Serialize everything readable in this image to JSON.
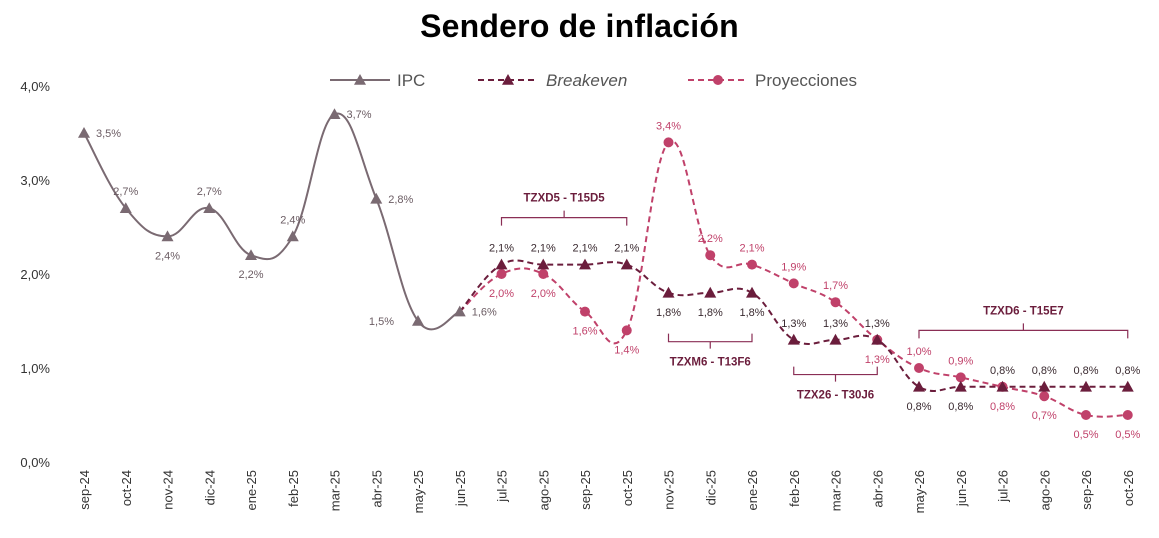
{
  "chart_data": {
    "type": "line",
    "title": "Sendero de inflación",
    "categories": [
      "sep-24",
      "oct-24",
      "nov-24",
      "dic-24",
      "ene-25",
      "feb-25",
      "mar-25",
      "abr-25",
      "may-25",
      "jun-25",
      "jul-25",
      "ago-25",
      "sep-25",
      "oct-25",
      "nov-25",
      "dic-25",
      "ene-26",
      "feb-26",
      "mar-26",
      "abr-26",
      "may-26",
      "jun-26",
      "jul-26",
      "ago-26",
      "sep-26",
      "oct-26"
    ],
    "ylim": [
      0,
      4
    ],
    "yticks": [
      0,
      1,
      2,
      3,
      4
    ],
    "ytick_labels": [
      "0,0%",
      "1,0%",
      "2,0%",
      "3,0%",
      "4,0%"
    ],
    "legend_position": "top",
    "series": [
      {
        "name": "IPC",
        "style": "solid",
        "marker": "triangle",
        "color": "#7a6a72",
        "points": [
          {
            "cat": 0,
            "value": 3.5,
            "label": "3,5%",
            "lpos": "right"
          },
          {
            "cat": 1,
            "value": 2.7,
            "label": "2,7%",
            "lpos": "above"
          },
          {
            "cat": 2,
            "value": 2.4,
            "label": "2,4%",
            "lpos": "below"
          },
          {
            "cat": 3,
            "value": 2.7,
            "label": "2,7%",
            "lpos": "above"
          },
          {
            "cat": 4,
            "value": 2.2,
            "label": "2,2%",
            "lpos": "below"
          },
          {
            "cat": 5,
            "value": 2.4,
            "label": "2,4%",
            "lpos": "above"
          },
          {
            "cat": 6,
            "value": 3.7,
            "label": "3,7%",
            "lpos": "right"
          },
          {
            "cat": 7,
            "value": 2.8,
            "label": "2,8%",
            "lpos": "right"
          },
          {
            "cat": 8,
            "value": 1.5,
            "label": "1,5%",
            "lpos": "left"
          },
          {
            "cat": 9,
            "value": 1.6,
            "label": "1,6%",
            "lpos": "right"
          }
        ]
      },
      {
        "name": "Breakeven",
        "style": "dashed",
        "marker": "triangle",
        "color": "#6b1d3c",
        "points": [
          {
            "cat": 9,
            "value": 1.6,
            "label": "",
            "lpos": "none"
          },
          {
            "cat": 10,
            "value": 2.1,
            "label": "2,1%",
            "lpos": "above"
          },
          {
            "cat": 11,
            "value": 2.1,
            "label": "2,1%",
            "lpos": "above"
          },
          {
            "cat": 12,
            "value": 2.1,
            "label": "2,1%",
            "lpos": "above"
          },
          {
            "cat": 13,
            "value": 2.1,
            "label": "2,1%",
            "lpos": "above"
          },
          {
            "cat": 14,
            "value": 1.8,
            "label": "1,8%",
            "lpos": "below"
          },
          {
            "cat": 15,
            "value": 1.8,
            "label": "1,8%",
            "lpos": "below"
          },
          {
            "cat": 16,
            "value": 1.8,
            "label": "1,8%",
            "lpos": "below"
          },
          {
            "cat": 17,
            "value": 1.3,
            "label": "1,3%",
            "lpos": "above"
          },
          {
            "cat": 18,
            "value": 1.3,
            "label": "1,3%",
            "lpos": "above"
          },
          {
            "cat": 19,
            "value": 1.3,
            "label": "1,3%",
            "lpos": "above"
          },
          {
            "cat": 20,
            "value": 0.8,
            "label": "0,8%",
            "lpos": "below"
          },
          {
            "cat": 21,
            "value": 0.8,
            "label": "0,8%",
            "lpos": "below"
          },
          {
            "cat": 22,
            "value": 0.8,
            "label": "0,8%",
            "lpos": "above"
          },
          {
            "cat": 23,
            "value": 0.8,
            "label": "0,8%",
            "lpos": "above"
          },
          {
            "cat": 24,
            "value": 0.8,
            "label": "0,8%",
            "lpos": "above"
          },
          {
            "cat": 25,
            "value": 0.8,
            "label": "0,8%",
            "lpos": "above"
          }
        ]
      },
      {
        "name": "Proyecciones",
        "style": "dashed",
        "marker": "circle",
        "color": "#c0416a",
        "points": [
          {
            "cat": 9,
            "value": 1.6,
            "label": "",
            "lpos": "none"
          },
          {
            "cat": 10,
            "value": 2.0,
            "label": "2,0%",
            "lpos": "below"
          },
          {
            "cat": 11,
            "value": 2.0,
            "label": "2,0%",
            "lpos": "below"
          },
          {
            "cat": 12,
            "value": 1.6,
            "label": "1,6%",
            "lpos": "below"
          },
          {
            "cat": 13,
            "value": 1.4,
            "label": "1,4%",
            "lpos": "below"
          },
          {
            "cat": 14,
            "value": 3.4,
            "label": "3,4%",
            "lpos": "above"
          },
          {
            "cat": 15,
            "value": 2.2,
            "label": "2,2%",
            "lpos": "above"
          },
          {
            "cat": 16,
            "value": 2.1,
            "label": "2,1%",
            "lpos": "above"
          },
          {
            "cat": 17,
            "value": 1.9,
            "label": "1,9%",
            "lpos": "above"
          },
          {
            "cat": 18,
            "value": 1.7,
            "label": "1,7%",
            "lpos": "above"
          },
          {
            "cat": 19,
            "value": 1.3,
            "label": "1,3%",
            "lpos": "below"
          },
          {
            "cat": 20,
            "value": 1.0,
            "label": "1,0%",
            "lpos": "above"
          },
          {
            "cat": 21,
            "value": 0.9,
            "label": "0,9%",
            "lpos": "above"
          },
          {
            "cat": 22,
            "value": 0.8,
            "label": "0,8%",
            "lpos": "below"
          },
          {
            "cat": 23,
            "value": 0.7,
            "label": "0,7%",
            "lpos": "below"
          },
          {
            "cat": 24,
            "value": 0.5,
            "label": "0,5%",
            "lpos": "below"
          },
          {
            "cat": 25,
            "value": 0.5,
            "label": "0,5%",
            "lpos": "below"
          }
        ]
      }
    ],
    "brackets": [
      {
        "label": "TZXD5 - T15D5",
        "from": 10,
        "to": 13,
        "side": "above",
        "level": 2.6
      },
      {
        "label": "TZXM6 - T13F6",
        "from": 14,
        "to": 16,
        "side": "below",
        "level": 1.28
      },
      {
        "label": "TZX26 - T30J6",
        "from": 17,
        "to": 19,
        "side": "below",
        "level": 0.93
      },
      {
        "label": "TZXD6 - T15E7",
        "from": 20,
        "to": 25,
        "side": "above",
        "level": 1.4
      }
    ]
  }
}
